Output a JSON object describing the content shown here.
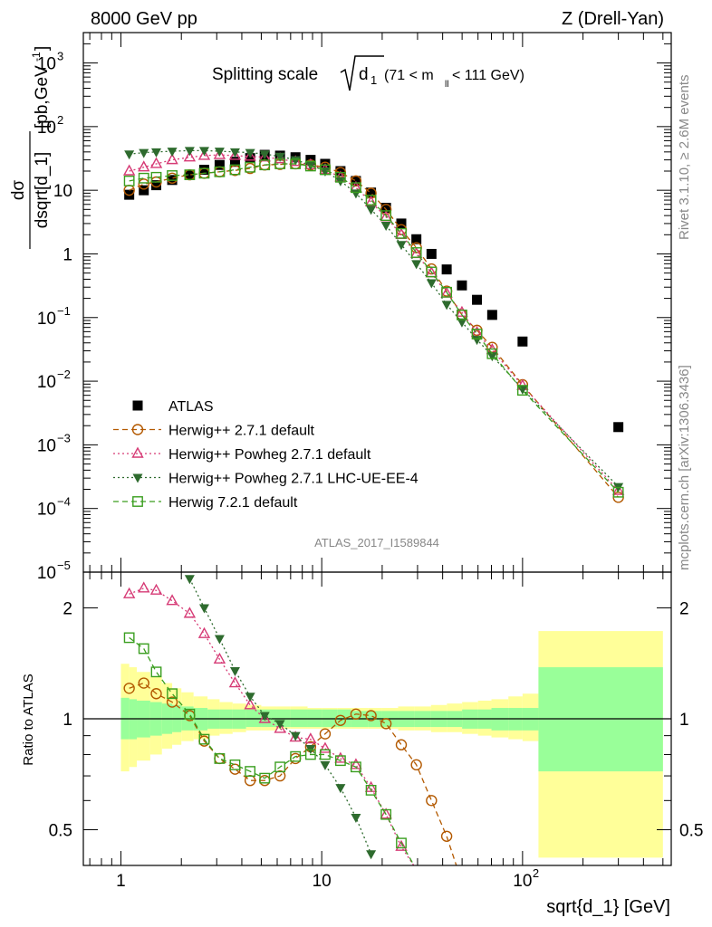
{
  "header": {
    "left": "8000 GeV pp",
    "right": "Z (Drell-Yan)"
  },
  "side_labels": {
    "rivet": "Rivet 3.1.10, ≥ 2.6M events",
    "mcplots": "mcplots.cern.ch [arXiv:1306.3436]"
  },
  "main_title": {
    "prefix": "Splitting scale",
    "symbol": "d",
    "sub": "1",
    "range": "(71 < m",
    "range_sub": "ll",
    "range_end": " < 111 GeV)"
  },
  "watermark": "ATLAS_2017_I1589844",
  "axis_labels": {
    "y_top_num": "dσ",
    "y_top_den": "dsqrt[d_1]",
    "y_top_unit": "[pb,GeV",
    "y_top_unit_sup": "-1",
    "y_top_unit_end": "]",
    "y_bottom": "Ratio to ATLAS",
    "x": "sqrt{d_1} [GeV]"
  },
  "colors": {
    "atlas": "#000000",
    "herwigpp": "#b35900",
    "powheg_default": "#d63a75",
    "powheg_ue": "#2e6b2e",
    "herwig7": "#3a9e1f",
    "band_inner": "#99ff99",
    "band_outer": "#ffff99"
  },
  "chart_data": [
    {
      "type": "scatter",
      "scale": {
        "x": "log",
        "y": "log"
      },
      "xlim": [
        0.65,
        550
      ],
      "ylim": [
        1e-05,
        3000
      ],
      "x_ticks": [
        {
          "v": 1,
          "label": "1"
        },
        {
          "v": 10,
          "label": "10"
        },
        {
          "v": 100,
          "label": "10",
          "sup": "2"
        }
      ],
      "y_ticks": [
        {
          "v": 1000,
          "base": "10",
          "sup": "3"
        },
        {
          "v": 100,
          "base": "10",
          "sup": "2"
        },
        {
          "v": 10,
          "base": "10",
          "sup": ""
        },
        {
          "v": 1,
          "base": "1",
          "sup": ""
        },
        {
          "v": 0.1,
          "base": "10",
          "sup": "−1"
        },
        {
          "v": 0.01,
          "base": "10",
          "sup": "−2"
        },
        {
          "v": 0.001,
          "base": "10",
          "sup": "−3"
        },
        {
          "v": 0.0001,
          "base": "10",
          "sup": "−4"
        },
        {
          "v": 1e-05,
          "base": "10",
          "sup": "−5"
        }
      ],
      "legend_position": "bottom-left",
      "series": [
        {
          "name": "ATLAS",
          "marker": "square-filled",
          "line": "none",
          "x": [
            1.1,
            1.3,
            1.5,
            1.8,
            2.2,
            2.6,
            3.1,
            3.7,
            4.4,
            5.2,
            6.2,
            7.4,
            8.8,
            10.4,
            12.4,
            14.8,
            17.6,
            20.9,
            24.9,
            29.6,
            35.2,
            41.9,
            49.9,
            59.3,
            70.6,
            100,
            300
          ],
          "y": [
            8.5,
            10,
            12,
            14.5,
            17.5,
            21,
            25,
            28,
            32,
            36,
            35,
            33,
            30,
            26,
            20,
            14,
            9.2,
            5.3,
            3.0,
            1.7,
            1.0,
            0.57,
            0.32,
            0.19,
            0.11,
            0.042,
            0.0019
          ]
        },
        {
          "name": "Herwig++ 2.7.1 default",
          "marker": "circle-open",
          "line": "dashed",
          "color_key": "herwigpp",
          "x": [
            1.1,
            1.3,
            1.5,
            1.8,
            2.2,
            2.6,
            3.1,
            3.7,
            4.4,
            5.2,
            6.2,
            7.4,
            8.8,
            10.4,
            12.4,
            14.8,
            17.6,
            20.9,
            24.9,
            29.6,
            35.2,
            41.9,
            49.9,
            59.3,
            70.6,
            100,
            300
          ],
          "y": [
            10,
            12.5,
            13.5,
            15.5,
            17.5,
            18.5,
            19.5,
            20.5,
            22,
            25,
            25.5,
            26,
            25,
            23,
            19,
            14,
            9,
            5,
            2.4,
            1.25,
            0.58,
            0.26,
            0.11,
            0.063,
            0.034,
            0.0088,
            0.00015
          ]
        },
        {
          "name": "Herwig++ Powheg 2.7.1 default",
          "marker": "triangle-open",
          "line": "dotted",
          "color_key": "powheg_default",
          "x": [
            1.1,
            1.3,
            1.5,
            1.8,
            2.2,
            2.6,
            3.1,
            3.7,
            4.4,
            5.2,
            6.2,
            7.4,
            8.8,
            10.4,
            12.4,
            14.8,
            17.6,
            20.9,
            24.9,
            29.6,
            35.2,
            41.9,
            49.9,
            59.3,
            70.6,
            100,
            300
          ],
          "y": [
            20,
            23,
            26,
            30,
            33,
            35,
            36,
            35,
            34,
            33,
            31,
            28,
            25,
            21,
            16,
            11,
            6.5,
            3.8,
            2.0,
            1.0,
            0.5,
            0.24,
            0.12,
            0.058,
            0.031,
            0.0085,
            0.00019
          ]
        },
        {
          "name": "Herwig++ Powheg 2.7.1 LHC-UE-EE-4",
          "marker": "triangle-down-filled",
          "line": "dotted",
          "color_key": "powheg_ue",
          "x": [
            1.1,
            1.3,
            1.5,
            1.8,
            2.2,
            2.6,
            3.1,
            3.7,
            4.4,
            5.2,
            6.2,
            7.4,
            8.8,
            10.4,
            12.4,
            14.8,
            17.6,
            20.9,
            24.9,
            29.6,
            35.2,
            41.9,
            49.9,
            59.3,
            70.6,
            100,
            300
          ],
          "y": [
            37,
            39,
            40,
            41,
            42,
            42,
            41,
            40,
            39,
            37,
            34,
            30,
            25,
            20,
            14,
            9,
            5,
            2.8,
            1.4,
            0.7,
            0.35,
            0.16,
            0.085,
            0.045,
            0.025,
            0.0075,
            0.00022
          ]
        },
        {
          "name": "Herwig 7.2.1 default",
          "marker": "square-open",
          "line": "dashed",
          "color_key": "herwig7",
          "x": [
            1.1,
            1.3,
            1.5,
            1.8,
            2.2,
            2.6,
            3.1,
            3.7,
            4.4,
            5.2,
            6.2,
            7.4,
            8.8,
            10.4,
            12.4,
            14.8,
            17.6,
            20.9,
            24.9,
            29.6,
            35.2,
            41.9,
            49.9,
            59.3,
            70.6,
            100,
            300
          ],
          "y": [
            14,
            15.5,
            16,
            17,
            17.5,
            18.5,
            19.5,
            21,
            23,
            25,
            26,
            26,
            24,
            21,
            16,
            11,
            7,
            4,
            2.1,
            1.05,
            0.52,
            0.25,
            0.11,
            0.055,
            0.027,
            0.0072,
            0.00018
          ]
        }
      ]
    },
    {
      "type": "line",
      "scale": {
        "x": "log",
        "y": "log"
      },
      "xlim": [
        0.65,
        550
      ],
      "ylim": [
        0.4,
        2.5
      ],
      "y_ticks": [
        {
          "v": 0.5,
          "label": "0.5"
        },
        {
          "v": 1,
          "label": "1"
        },
        {
          "v": 2,
          "label": "2"
        }
      ],
      "reference_line": 1,
      "band_edges": [
        1.0,
        1.1,
        1.2,
        1.4,
        1.6,
        1.8,
        2.0,
        2.3,
        2.7,
        3.1,
        3.6,
        4.2,
        5,
        6,
        7,
        8.5,
        10,
        12,
        14,
        17,
        20,
        24,
        29,
        35,
        42,
        50,
        60,
        70,
        85,
        100,
        120,
        500
      ],
      "band_inner_lo": [
        0.88,
        0.88,
        0.89,
        0.9,
        0.91,
        0.92,
        0.93,
        0.93,
        0.94,
        0.94,
        0.94,
        0.95,
        0.95,
        0.95,
        0.95,
        0.95,
        0.95,
        0.95,
        0.95,
        0.95,
        0.95,
        0.95,
        0.95,
        0.95,
        0.95,
        0.94,
        0.94,
        0.93,
        0.93,
        0.93,
        0.72
      ],
      "band_inner_hi": [
        1.14,
        1.13,
        1.12,
        1.11,
        1.1,
        1.09,
        1.08,
        1.07,
        1.06,
        1.06,
        1.06,
        1.06,
        1.06,
        1.06,
        1.06,
        1.06,
        1.06,
        1.06,
        1.05,
        1.05,
        1.05,
        1.05,
        1.05,
        1.05,
        1.05,
        1.06,
        1.06,
        1.07,
        1.07,
        1.07,
        1.38
      ],
      "band_outer_lo": [
        0.72,
        0.74,
        0.77,
        0.8,
        0.83,
        0.85,
        0.87,
        0.88,
        0.9,
        0.91,
        0.92,
        0.93,
        0.93,
        0.94,
        0.94,
        0.94,
        0.94,
        0.94,
        0.94,
        0.94,
        0.94,
        0.93,
        0.93,
        0.92,
        0.92,
        0.91,
        0.9,
        0.89,
        0.88,
        0.87,
        0.42
      ],
      "band_outer_hi": [
        1.41,
        1.38,
        1.34,
        1.3,
        1.25,
        1.21,
        1.18,
        1.15,
        1.13,
        1.11,
        1.1,
        1.09,
        1.08,
        1.08,
        1.08,
        1.07,
        1.07,
        1.07,
        1.07,
        1.07,
        1.07,
        1.08,
        1.08,
        1.09,
        1.1,
        1.11,
        1.12,
        1.13,
        1.15,
        1.17,
        1.73
      ],
      "series": [
        {
          "name": "Herwig++ 2.7.1 default",
          "marker": "circle-open",
          "line": "dashed",
          "color_key": "herwigpp",
          "x": [
            1.1,
            1.3,
            1.5,
            1.8,
            2.2,
            2.6,
            3.1,
            3.7,
            4.4,
            5.2,
            6.2,
            7.4,
            8.8,
            10.4,
            12.4,
            14.8,
            17.6,
            20.9,
            24.9,
            29.6,
            35.2,
            41.9,
            49.9
          ],
          "y": [
            1.21,
            1.25,
            1.17,
            1.11,
            1.02,
            0.87,
            0.78,
            0.73,
            0.68,
            0.68,
            0.7,
            0.78,
            0.84,
            0.91,
            0.99,
            1.03,
            1.02,
            0.97,
            0.85,
            0.75,
            0.6,
            0.48,
            0.36
          ]
        },
        {
          "name": "Herwig++ Powheg 2.7.1 default",
          "marker": "triangle-open",
          "line": "dotted",
          "color_key": "powheg_default",
          "x": [
            1.1,
            1.3,
            1.5,
            1.8,
            2.2,
            2.6,
            3.1,
            3.7,
            4.4,
            5.2,
            6.2,
            7.4,
            8.8,
            10.4,
            12.4,
            14.8,
            17.6,
            20.9,
            24.9,
            29.6
          ],
          "y": [
            2.18,
            2.26,
            2.23,
            2.09,
            1.93,
            1.7,
            1.45,
            1.25,
            1.09,
            1.0,
            0.94,
            0.89,
            0.88,
            0.83,
            0.78,
            0.75,
            0.65,
            0.55,
            0.45,
            0.39
          ]
        },
        {
          "name": "Herwig++ Powheg 2.7.1 LHC-UE-EE-4",
          "marker": "triangle-down-filled",
          "line": "dotted",
          "color_key": "powheg_ue",
          "x": [
            2.2,
            2.6,
            3.1,
            3.7,
            4.4,
            5.2,
            6.2,
            7.4,
            8.8,
            10.4,
            12.4,
            14.8,
            17.6
          ],
          "y": [
            2.4,
            2.0,
            1.65,
            1.35,
            1.15,
            1.02,
            0.97,
            0.9,
            0.83,
            0.75,
            0.65,
            0.54,
            0.43
          ]
        },
        {
          "name": "Herwig 7.2.1 default",
          "marker": "square-open",
          "line": "dashed",
          "color_key": "herwig7",
          "x": [
            1.1,
            1.3,
            1.5,
            1.8,
            2.2,
            2.6,
            3.1,
            3.7,
            4.4,
            5.2,
            6.2,
            7.4,
            8.8,
            10.4,
            12.4,
            14.8,
            17.6,
            20.9,
            24.9,
            29.6
          ],
          "y": [
            1.66,
            1.55,
            1.34,
            1.17,
            1.03,
            0.88,
            0.78,
            0.75,
            0.72,
            0.69,
            0.74,
            0.79,
            0.8,
            0.8,
            0.77,
            0.74,
            0.64,
            0.55,
            0.46,
            0.39
          ]
        }
      ]
    }
  ]
}
